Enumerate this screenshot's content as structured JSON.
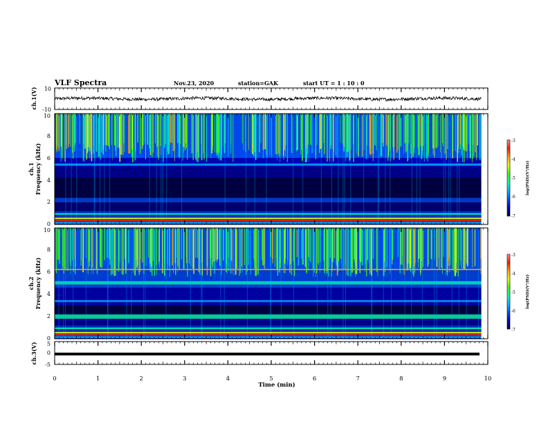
{
  "header": {
    "title": "VLF Spectra",
    "date": "Nov.23, 2020",
    "station": "station=GAK",
    "start_ut": "start  UT =   1 : 10 : 0"
  },
  "colors": {
    "spectrogram_scale": [
      "#000040",
      "#0000c0",
      "#0050ff",
      "#00b4ff",
      "#00ffb0",
      "#40ff00",
      "#e0ff00",
      "#ffa000",
      "#ff2000",
      "#ff9090",
      "#ffffff"
    ],
    "waveform": "#000000"
  },
  "chart_data": [
    {
      "type": "line",
      "panel": "ch1-waveform",
      "ylabel": "ch.1(V)",
      "ylim": [
        -10,
        10
      ],
      "yticks": [
        "10",
        "-10"
      ],
      "x_range": [
        0,
        9.85
      ],
      "approx_level": 0
    },
    {
      "type": "heatmap",
      "panel": "ch1-spectrogram",
      "ylabel_line1": "ch.1",
      "ylabel_line2": "Frequency (kHz)",
      "ylim": [
        0,
        10
      ],
      "yticks": [
        "0",
        "2",
        "4",
        "6",
        "8",
        "10"
      ],
      "x_range": [
        0,
        9.85
      ],
      "colorbar": {
        "label": "log(PSD)(V²/Hz)",
        "ticks": [
          "-3",
          "-4",
          "-5",
          "-6",
          "-7"
        ],
        "range": [
          -7,
          -3
        ]
      }
    },
    {
      "type": "heatmap",
      "panel": "ch2-spectrogram",
      "ylabel_line1": "ch.2",
      "ylabel_line2": "Frequency (kHz)",
      "ylim": [
        0,
        10
      ],
      "yticks": [
        "0",
        "2",
        "4",
        "6",
        "8",
        "10"
      ],
      "x_range": [
        0,
        9.85
      ],
      "colorbar": {
        "label": "log(PSD)(V²/Hz)",
        "ticks": [
          "-3",
          "-4",
          "-5",
          "-6",
          "-7"
        ],
        "range": [
          -7,
          -3
        ]
      }
    },
    {
      "type": "line",
      "panel": "ch3-waveform",
      "ylabel": "ch.3(V)",
      "ylim": [
        -5,
        5
      ],
      "yticks": [
        "5",
        "0",
        "-5"
      ],
      "x_range": [
        0,
        9.85
      ],
      "approx_level": -1
    }
  ],
  "xaxis": {
    "label": "Time (min)",
    "ticks": [
      "0",
      "1",
      "2",
      "3",
      "4",
      "5",
      "6",
      "7",
      "8",
      "9",
      "10"
    ],
    "range": [
      0,
      10
    ]
  }
}
